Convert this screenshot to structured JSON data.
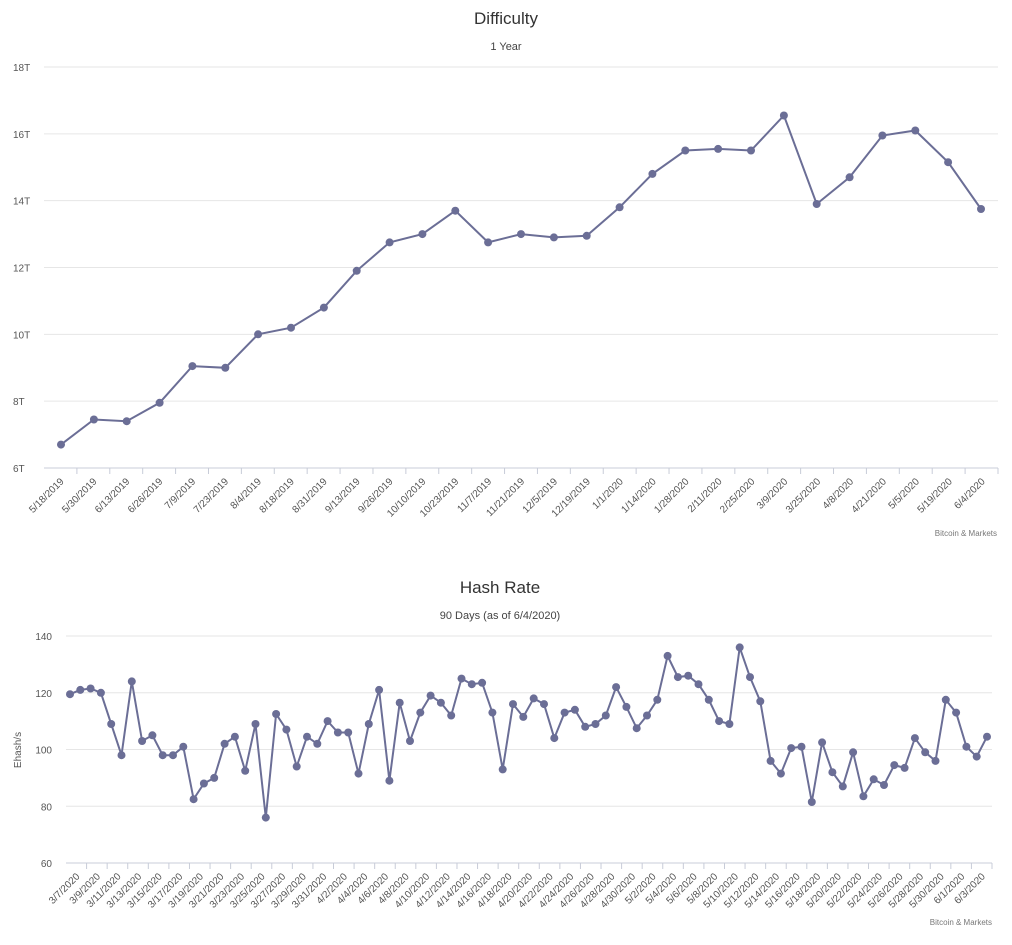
{
  "chart_data": [
    {
      "type": "line",
      "title": "Difficulty",
      "subtitle": "1 Year",
      "xlabel": "",
      "ylabel": "",
      "credit": "Bitcoin & Markets",
      "yticks": [
        "6T",
        "8T",
        "10T",
        "12T",
        "14T",
        "16T",
        "18T"
      ],
      "ylim": [
        6,
        18
      ],
      "grid": true,
      "color": "#6b6e96",
      "x": [
        "5/18/2019",
        "5/30/2019",
        "6/13/2019",
        "6/26/2019",
        "7/9/2019",
        "7/23/2019",
        "8/4/2019",
        "8/18/2019",
        "8/31/2019",
        "9/13/2019",
        "9/26/2019",
        "10/10/2019",
        "10/23/2019",
        "11/7/2019",
        "11/21/2019",
        "12/5/2019",
        "12/19/2019",
        "1/1/2020",
        "1/14/2020",
        "1/28/2020",
        "2/11/2020",
        "2/25/2020",
        "3/9/2020",
        "3/25/2020",
        "4/8/2020",
        "4/21/2020",
        "5/5/2020",
        "5/19/2020",
        "6/4/2020"
      ],
      "values": [
        6.7,
        7.45,
        7.4,
        7.95,
        9.05,
        9.0,
        10.0,
        10.2,
        10.8,
        11.9,
        12.75,
        13.0,
        13.7,
        12.75,
        13.0,
        12.9,
        12.95,
        13.8,
        14.8,
        15.5,
        15.55,
        15.5,
        16.55,
        13.9,
        14.7,
        15.95,
        16.1,
        15.15,
        13.75
      ]
    },
    {
      "type": "line",
      "title": "Hash Rate",
      "subtitle": "90 Days (as of 6/4/2020)",
      "xlabel": "",
      "ylabel": "Ehash/s",
      "credit": "Bitcoin & Markets",
      "yticks": [
        "60",
        "80",
        "100",
        "120",
        "140"
      ],
      "ylim": [
        60,
        140
      ],
      "grid": true,
      "color": "#6b6e96",
      "xticks": [
        "3/7/2020",
        "3/9/2020",
        "3/11/2020",
        "3/13/2020",
        "3/15/2020",
        "3/17/2020",
        "3/19/2020",
        "3/21/2020",
        "3/23/2020",
        "3/25/2020",
        "3/27/2020",
        "3/29/2020",
        "3/31/2020",
        "4/2/2020",
        "4/4/2020",
        "4/6/2020",
        "4/8/2020",
        "4/10/2020",
        "4/12/2020",
        "4/14/2020",
        "4/16/2020",
        "4/18/2020",
        "4/20/2020",
        "4/22/2020",
        "4/24/2020",
        "4/26/2020",
        "4/28/2020",
        "4/30/2020",
        "5/2/2020",
        "5/4/2020",
        "5/6/2020",
        "5/8/2020",
        "5/10/2020",
        "5/12/2020",
        "5/14/2020",
        "5/16/2020",
        "5/18/2020",
        "5/20/2020",
        "5/22/2020",
        "5/24/2020",
        "5/26/2020",
        "5/28/2020",
        "5/30/2020",
        "6/1/2020",
        "6/3/2020"
      ],
      "values": [
        119.5,
        121,
        121.5,
        120,
        109,
        98,
        124,
        103,
        105,
        98,
        98,
        101,
        82.5,
        88,
        90,
        102,
        104.5,
        92.5,
        109,
        76,
        112.5,
        107,
        94,
        104.5,
        102,
        110,
        106,
        106,
        91.5,
        109,
        121,
        89,
        116.5,
        103,
        113,
        119,
        116.5,
        112,
        125,
        123,
        123.5,
        113,
        93,
        116,
        111.5,
        118,
        116,
        104,
        113,
        114,
        108,
        109,
        112,
        122,
        115,
        107.5,
        112,
        117.5,
        133,
        125.5,
        126,
        123,
        117.5,
        110,
        109,
        136,
        125.5,
        117,
        96,
        91.5,
        100.5,
        101,
        81.5,
        102.5,
        92,
        87,
        99,
        83.5,
        89.5,
        87.5,
        94.5,
        93.5,
        104,
        99,
        96,
        117.5,
        113,
        101,
        97.5,
        104.5
      ]
    }
  ]
}
